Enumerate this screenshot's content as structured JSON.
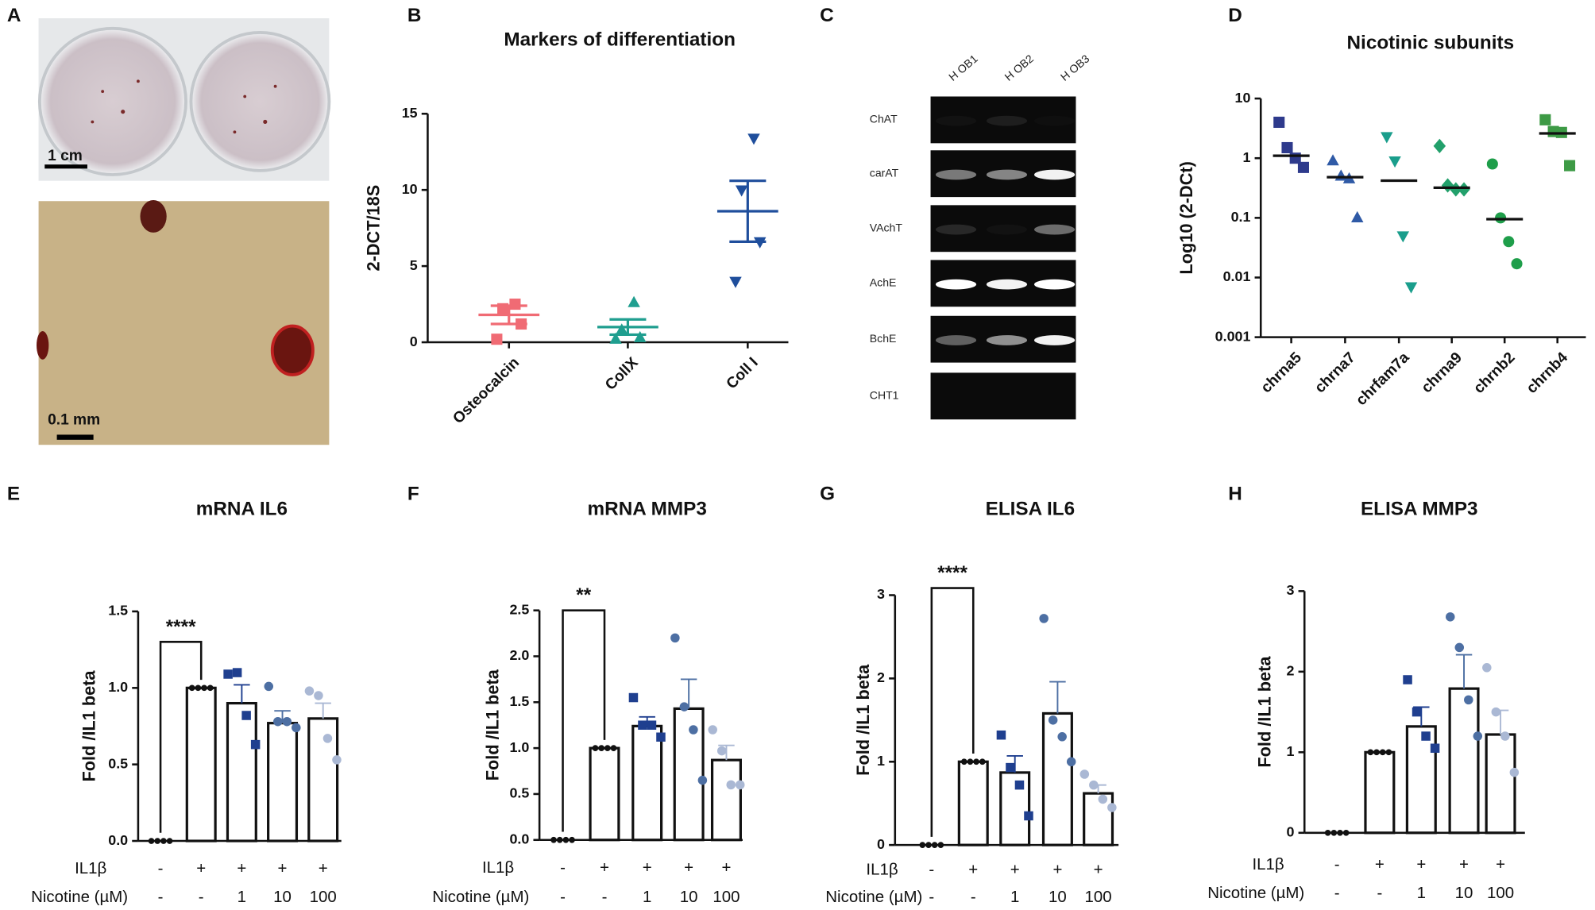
{
  "panel_a": {
    "panel": "A",
    "scale_bars": [
      "1 cm",
      "0.1 mm"
    ]
  },
  "panel_c": {
    "panel": "C",
    "lanes": [
      "H OB1",
      "H OB2",
      "H OB3"
    ],
    "genes": [
      "ChAT",
      "carAT",
      "VAchT",
      "AchE",
      "BchE",
      "CHT1"
    ]
  },
  "chart_data": [
    {
      "type": "dot_plot",
      "panel": "B",
      "title": "Markers of differentiation",
      "y_label": "2-DCT/18S",
      "categories": [
        "Osteocalcin",
        "CollX",
        "Coll I"
      ],
      "points": [
        [
          2.5,
          2.2,
          1.2,
          0.2
        ],
        [
          2.6,
          0.8,
          0.3,
          0.2
        ],
        [
          13.4,
          10.0,
          6.6,
          4.0
        ]
      ],
      "means": [
        1.8,
        1.0,
        8.6
      ],
      "errors": [
        0.6,
        0.5,
        2.0
      ],
      "colors": [
        "#f06b74",
        "#1f9e8f",
        "#1f4e9c"
      ],
      "markers": [
        "square",
        "triangle",
        "triangle-down"
      ],
      "ylim": [
        0,
        15
      ],
      "yticks": [
        0,
        5,
        10,
        15
      ],
      "log": false
    },
    {
      "type": "dot_plot",
      "panel": "D",
      "title": "Nicotinic subunits",
      "y_label": "Log10 (2-DCt)",
      "categories": [
        "chrna5",
        "chrna7",
        "chrfam7a",
        "chrna9",
        "chrnb2",
        "chrnb4"
      ],
      "points": [
        [
          4,
          1.5,
          1.0,
          0.7
        ],
        [
          0.9,
          0.5,
          0.45,
          0.1
        ],
        [
          2.3,
          0.9,
          0.05,
          0.007
        ],
        [
          1.6,
          0.35,
          0.3,
          0.3
        ],
        [
          0.8,
          0.1,
          0.04,
          0.017
        ],
        [
          4.4,
          2.8,
          2.7,
          0.75
        ]
      ],
      "means": [
        1.1,
        0.48,
        0.42,
        0.32,
        0.095,
        2.6
      ],
      "colors": [
        "#2e3a8c",
        "#2f5aa6",
        "#1a9e8c",
        "#22a06b",
        "#1e9e4a",
        "#3d9a45"
      ],
      "markers": [
        "square",
        "triangle",
        "triangle-down",
        "diamond",
        "circle",
        "square"
      ],
      "ylim": [
        0.001,
        10
      ],
      "yticks": [
        0.001,
        0.01,
        0.1,
        1,
        10
      ],
      "log": true
    },
    {
      "type": "bar",
      "panel": "E",
      "title": "mRNA IL6",
      "y_label": "Fold /IL1 beta",
      "conditions": [
        {
          "name": "IL1β",
          "levels": [
            "-",
            "+",
            "+",
            "+",
            "+"
          ]
        },
        {
          "name": "Nicotine (µM)",
          "levels": [
            "-",
            "-",
            "1",
            "10",
            "100"
          ]
        }
      ],
      "values": [
        0,
        1,
        0.9,
        0.77,
        0.8
      ],
      "errors": [
        0,
        0,
        0.12,
        0.08,
        0.1
      ],
      "points": [
        [
          0,
          0,
          0,
          0
        ],
        [
          1,
          1,
          1,
          1
        ],
        [
          1.09,
          1.1,
          0.82,
          0.63
        ],
        [
          1.01,
          0.78,
          0.78,
          0.74
        ],
        [
          0.98,
          0.95,
          0.67,
          0.53
        ]
      ],
      "point_colors": [
        "#111111",
        "#111111",
        "#1f3f8f",
        "#4d6fa3",
        "#aab8d4"
      ],
      "markers": [
        "circle",
        "circle",
        "square",
        "circle",
        "circle"
      ],
      "significance": "****",
      "ylim": [
        0,
        1.5
      ],
      "yticks": [
        {
          "value": 0,
          "label": "0.0"
        },
        0.5,
        {
          "value": 1,
          "label": "1.0"
        },
        1.5
      ]
    },
    {
      "type": "bar",
      "panel": "F",
      "title": "mRNA MMP3",
      "y_label": "Fold /IL1 beta",
      "conditions": [
        {
          "name": "IL1β",
          "levels": [
            "-",
            "+",
            "+",
            "+",
            "+"
          ]
        },
        {
          "name": "Nicotine (µM)",
          "levels": [
            "-",
            "-",
            "1",
            "10",
            "100"
          ]
        }
      ],
      "values": [
        0,
        1,
        1.24,
        1.43,
        0.87
      ],
      "errors": [
        0,
        0,
        0.1,
        0.32,
        0.16
      ],
      "points": [
        [
          0,
          0,
          0,
          0
        ],
        [
          1,
          1,
          1,
          1
        ],
        [
          1.55,
          1.25,
          1.25,
          1.12
        ],
        [
          2.2,
          1.45,
          1.2,
          0.65
        ],
        [
          1.2,
          0.97,
          0.6,
          0.6
        ]
      ],
      "point_colors": [
        "#111111",
        "#111111",
        "#1f3f8f",
        "#4d6fa3",
        "#aab8d4"
      ],
      "markers": [
        "circle",
        "circle",
        "square",
        "circle",
        "circle"
      ],
      "significance": "**",
      "ylim": [
        0,
        2.5
      ],
      "yticks": [
        {
          "value": 0,
          "label": "0.0"
        },
        0.5,
        {
          "value": 1,
          "label": "1.0"
        },
        1.5,
        {
          "value": 2,
          "label": "2.0"
        },
        2.5
      ]
    },
    {
      "type": "bar",
      "panel": "G",
      "title": "ELISA IL6",
      "y_label": "Fold /IL1 beta",
      "conditions": [
        {
          "name": "IL1β",
          "levels": [
            "-",
            "+",
            "+",
            "+",
            "+"
          ]
        },
        {
          "name": "Nicotine (µM)",
          "levels": [
            "-",
            "-",
            "1",
            "10",
            "100"
          ]
        }
      ],
      "values": [
        0,
        1,
        0.87,
        1.58,
        0.62
      ],
      "errors": [
        0,
        0,
        0.2,
        0.38,
        0.1
      ],
      "points": [
        [
          0,
          0,
          0,
          0
        ],
        [
          1,
          1,
          1,
          1
        ],
        [
          1.32,
          0.93,
          0.72,
          0.35
        ],
        [
          2.72,
          1.5,
          1.3,
          1.0
        ],
        [
          0.85,
          0.72,
          0.55,
          0.45
        ]
      ],
      "point_colors": [
        "#111111",
        "#111111",
        "#1f3f8f",
        "#4d6fa3",
        "#aab8d4"
      ],
      "markers": [
        "circle",
        "circle",
        "square",
        "circle",
        "circle"
      ],
      "significance": "****",
      "ylim": [
        0,
        3
      ],
      "yticks": [
        0,
        1,
        2,
        3
      ]
    },
    {
      "type": "bar",
      "panel": "H",
      "title": "ELISA MMP3",
      "y_label": "Fold /IL1 beta",
      "conditions": [
        {
          "name": "IL1β",
          "levels": [
            "-",
            "+",
            "+",
            "+",
            "+"
          ]
        },
        {
          "name": "Nicotine (µM)",
          "levels": [
            "-",
            "-",
            "1",
            "10",
            "100"
          ]
        }
      ],
      "values": [
        0,
        1,
        1.32,
        1.79,
        1.22
      ],
      "errors": [
        0,
        0,
        0.24,
        0.42,
        0.3
      ],
      "points": [
        [
          0,
          0,
          0,
          0
        ],
        [
          1,
          1,
          1,
          1
        ],
        [
          1.9,
          1.5,
          1.2,
          1.05
        ],
        [
          2.68,
          2.3,
          1.65,
          1.2
        ],
        [
          2.05,
          1.5,
          1.2,
          0.75
        ]
      ],
      "point_colors": [
        "#111111",
        "#111111",
        "#1f3f8f",
        "#4d6fa3",
        "#aab8d4"
      ],
      "markers": [
        "circle",
        "circle",
        "square",
        "circle",
        "circle"
      ],
      "ylim": [
        0,
        3
      ],
      "yticks": [
        0,
        1,
        2,
        3
      ]
    }
  ]
}
